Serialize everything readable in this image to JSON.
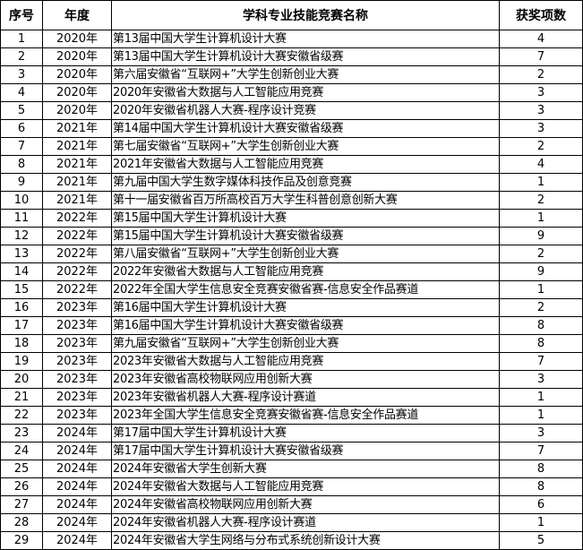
{
  "table": {
    "headers": [
      "序号",
      "年度",
      "学科专业技能竞赛名称",
      "获奖项数"
    ],
    "rows": [
      [
        "1",
        "2020年",
        "第13届中国大学生计算机设计大赛",
        "4"
      ],
      [
        "2",
        "2020年",
        "第13届中国大学生计算机设计大赛安徽省级赛",
        "7"
      ],
      [
        "3",
        "2020年",
        "第六届安徽省“互联网+”大学生创新创业大赛",
        "2"
      ],
      [
        "4",
        "2020年",
        "2020年安徽省大数据与人工智能应用竞赛",
        "3"
      ],
      [
        "5",
        "2020年",
        "2020年安徽省机器人大赛-程序设计竞赛",
        "3"
      ],
      [
        "6",
        "2021年",
        "第14届中国大学生计算机设计大赛安徽省级赛",
        "3"
      ],
      [
        "7",
        "2021年",
        "第七届安徽省“互联网+”大学生创新创业大赛",
        "2"
      ],
      [
        "8",
        "2021年",
        "2021年安徽省大数据与人工智能应用竞赛",
        "4"
      ],
      [
        "9",
        "2021年",
        "第九届中国大学生数字媒体科技作品及创意竞赛",
        "1"
      ],
      [
        "10",
        "2021年",
        "第十一届安徽省百万所高校百万大学生科普创意创新大赛",
        "2"
      ],
      [
        "11",
        "2022年",
        "第15届中国大学生计算机设计大赛",
        "1"
      ],
      [
        "12",
        "2022年",
        "第15届中国大学生计算机设计大赛安徽省级赛",
        "9"
      ],
      [
        "13",
        "2022年",
        "第八届安徽省“互联网+”大学生创新创业大赛",
        "2"
      ],
      [
        "14",
        "2022年",
        "2022年安徽省大数据与人工智能应用竞赛",
        "9"
      ],
      [
        "15",
        "2022年",
        "2022年全国大学生信息安全竞赛安徽省赛-信息安全作品赛道",
        "1"
      ],
      [
        "16",
        "2023年",
        "第16届中国大学生计算机设计大赛",
        "2"
      ],
      [
        "17",
        "2023年",
        "第16届中国大学生计算机设计大赛安徽省级赛",
        "8"
      ],
      [
        "18",
        "2023年",
        "第九届安徽省“互联网+”大学生创新创业大赛",
        "8"
      ],
      [
        "19",
        "2023年",
        "2023年安徽省大数据与人工智能应用竞赛",
        "7"
      ],
      [
        "20",
        "2023年",
        "2023年安徽省高校物联网应用创新大赛",
        "3"
      ],
      [
        "21",
        "2023年",
        "2023年安徽省机器人大赛-程序设计赛道",
        "1"
      ],
      [
        "22",
        "2023年",
        "2023年全国大学生信息安全竞赛安徽省赛-信息安全作品赛道",
        "1"
      ],
      [
        "23",
        "2024年",
        "第17届中国大学生计算机设计大赛",
        "3"
      ],
      [
        "24",
        "2024年",
        "第17届中国大学生计算机设计大赛安徽省级赛",
        "7"
      ],
      [
        "25",
        "2024年",
        "2024年安徽省大学生创新大赛",
        "8"
      ],
      [
        "26",
        "2024年",
        "2024年安徽省大数据与人工智能应用竞赛",
        "8"
      ],
      [
        "27",
        "2024年",
        "2024年安徽省高校物联网应用创新大赛",
        "6"
      ],
      [
        "28",
        "2024年",
        "2024年安徽省机器人大赛-程序设计赛道",
        "1"
      ],
      [
        "29",
        "2024年",
        "2024年安徽省大学生网络与分布式系统创新设计大赛",
        "5"
      ]
    ]
  }
}
